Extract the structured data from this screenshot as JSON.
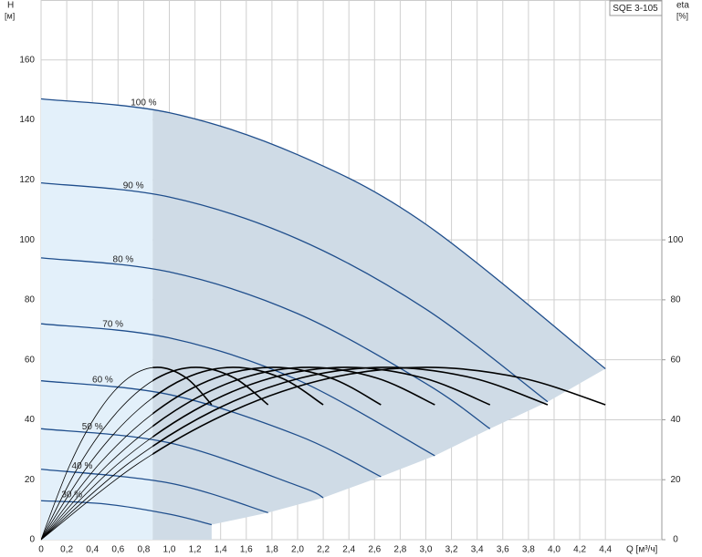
{
  "chart_data": {
    "type": "line",
    "title": "SQE 3-105",
    "y_label": "H",
    "y_unit": "[м]",
    "y2_label": "eta",
    "y2_unit": "[%]",
    "x_label": "Q [м³/ч]",
    "xlim": [
      0,
      4.84
    ],
    "ylim": [
      0,
      180
    ],
    "y2lim": [
      0,
      180
    ],
    "xticks": [
      0,
      {
        "value": 0.2,
        "label": "0,2"
      },
      {
        "value": 0.4,
        "label": "0,4"
      },
      {
        "value": 0.6,
        "label": "0,6"
      },
      {
        "value": 0.8,
        "label": "0,8"
      },
      {
        "value": 1.0,
        "label": "1,0"
      },
      {
        "value": 1.2,
        "label": "1,2"
      },
      {
        "value": 1.4,
        "label": "1,4"
      },
      {
        "value": 1.6,
        "label": "1,6"
      },
      {
        "value": 1.8,
        "label": "1,8"
      },
      {
        "value": 2.0,
        "label": "2,0"
      },
      {
        "value": 2.2,
        "label": "2,2"
      },
      {
        "value": 2.4,
        "label": "2,4"
      },
      {
        "value": 2.6,
        "label": "2,6"
      },
      {
        "value": 2.8,
        "label": "2,8"
      },
      {
        "value": 3.0,
        "label": "3,0"
      },
      {
        "value": 3.2,
        "label": "3,2"
      },
      {
        "value": 3.4,
        "label": "3,4"
      },
      {
        "value": 3.6,
        "label": "3,6"
      },
      {
        "value": 3.8,
        "label": "3,8"
      },
      {
        "value": 4.0,
        "label": "4,0"
      },
      {
        "value": 4.2,
        "label": "4,2"
      },
      {
        "value": 4.4,
        "label": "4,4"
      }
    ],
    "yticks": [
      0,
      20,
      40,
      60,
      80,
      100,
      120,
      140,
      160
    ],
    "y2ticks": [
      0,
      20,
      40,
      60,
      80,
      100
    ],
    "grid": true,
    "shade_qmin": 0.87,
    "series": [
      {
        "name": "100 %",
        "color": "#1f4e8c",
        "x": [
          0,
          1,
          2,
          3,
          4.4
        ],
        "values": [
          147,
          142.4,
          128.4,
          105.2,
          57
        ]
      },
      {
        "name": "90 %",
        "color": "#1f4e8c",
        "x": [
          0,
          1,
          2,
          3,
          3.95
        ],
        "values": [
          119,
          114.3,
          100.3,
          76.9,
          46
        ]
      },
      {
        "name": "80 %",
        "color": "#1f4e8c",
        "x": [
          0,
          1,
          2,
          3,
          3.5
        ],
        "values": [
          94,
          89.3,
          75.4,
          52.1,
          37
        ]
      },
      {
        "name": "70 %",
        "color": "#1f4e8c",
        "x": [
          0,
          1,
          2,
          3.07
        ],
        "values": [
          72,
          67.3,
          53.3,
          28
        ]
      },
      {
        "name": "60 %",
        "color": "#1f4e8c",
        "x": [
          0,
          1,
          2,
          2.65
        ],
        "values": [
          53,
          48.4,
          34.8,
          21
        ]
      },
      {
        "name": "50 %",
        "color": "#1f4e8c",
        "x": [
          0,
          1,
          2,
          2.2
        ],
        "values": [
          37,
          32.3,
          18,
          14
        ]
      },
      {
        "name": "40 %",
        "color": "#1f4e8c",
        "x": [
          0,
          1,
          1.77
        ],
        "values": [
          23.5,
          18.9,
          9
        ]
      },
      {
        "name": "30 %",
        "color": "#1f4e8c",
        "x": [
          0,
          0.5,
          1,
          1.33
        ],
        "values": [
          13,
          11.9,
          8.5,
          5
        ]
      },
      {
        "color": "#000000",
        "axis": "y2",
        "x": [
          0,
          0.227,
          0.454,
          0.68,
          0.907,
          1.134,
          1.33
        ],
        "values": [
          0,
          25.2,
          43.1,
          53.9,
          57.5,
          53.9,
          45
        ]
      },
      {
        "color": "#000000",
        "axis": "y2",
        "x": [
          0,
          0.302,
          0.604,
          0.905,
          1.207,
          1.509,
          1.77
        ],
        "values": [
          0,
          25.2,
          43.1,
          53.9,
          57.5,
          53.9,
          45
        ]
      },
      {
        "color": "#000000",
        "axis": "y2",
        "x": [
          0,
          0.375,
          0.75,
          1.126,
          1.501,
          1.876,
          2.2
        ],
        "values": [
          0,
          25.2,
          43.1,
          53.9,
          57.5,
          53.9,
          45
        ]
      },
      {
        "color": "#000000",
        "axis": "y2",
        "x": [
          0,
          0.452,
          0.904,
          1.356,
          1.808,
          2.26,
          2.65
        ],
        "values": [
          0,
          25.2,
          43.1,
          53.9,
          57.5,
          53.9,
          45
        ]
      },
      {
        "color": "#000000",
        "axis": "y2",
        "x": [
          0,
          0.524,
          1.047,
          1.571,
          2.094,
          2.618,
          3.07
        ],
        "values": [
          0,
          25.2,
          43.1,
          53.9,
          57.5,
          53.9,
          45
        ]
      },
      {
        "color": "#000000",
        "axis": "y2",
        "x": [
          0,
          0.597,
          1.194,
          1.79,
          2.387,
          2.984,
          3.5
        ],
        "values": [
          0,
          25.2,
          43.1,
          53.9,
          57.5,
          53.9,
          45
        ]
      },
      {
        "color": "#000000",
        "axis": "y2",
        "x": [
          0,
          0.674,
          1.347,
          2.021,
          2.694,
          3.368,
          3.95
        ],
        "values": [
          0,
          25.2,
          43.1,
          53.9,
          57.5,
          53.9,
          45
        ]
      },
      {
        "color": "#000000",
        "axis": "y2",
        "x": [
          0,
          0.75,
          1.501,
          2.251,
          3.001,
          3.751,
          4.4
        ],
        "values": [
          0,
          25.2,
          43.1,
          53.9,
          57.5,
          53.9,
          45
        ]
      }
    ]
  }
}
